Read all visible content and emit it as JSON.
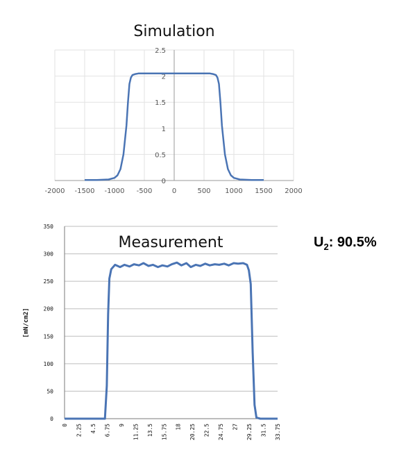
{
  "chart_data": [
    {
      "type": "line",
      "title": "Simulation",
      "xlim": [
        -2000,
        2000
      ],
      "ylim": [
        0,
        2.5
      ],
      "x_ticks": [
        "-2000",
        "-1500",
        "-1000",
        "-500",
        "0",
        "500",
        "1000",
        "1500",
        "2000"
      ],
      "y_ticks": [
        "0",
        "0.5",
        "1",
        "1.5",
        "2",
        "2.5"
      ],
      "grid": true,
      "color": "#4a74b4",
      "series": [
        {
          "x": [
            -1500,
            -1300,
            -1100,
            -1000,
            -950,
            -900,
            -850,
            -800,
            -775,
            -750,
            -725,
            -700,
            -650,
            -600,
            -500,
            -300,
            0,
            300,
            500,
            600,
            650,
            700,
            725,
            750,
            775,
            800,
            850,
            900,
            950,
            1000,
            1100,
            1300,
            1500
          ],
          "y": [
            0.01,
            0.01,
            0.02,
            0.05,
            0.1,
            0.22,
            0.5,
            1.05,
            1.5,
            1.85,
            1.97,
            2.02,
            2.04,
            2.05,
            2.05,
            2.05,
            2.05,
            2.05,
            2.05,
            2.05,
            2.04,
            2.02,
            1.97,
            1.85,
            1.5,
            1.05,
            0.5,
            0.22,
            0.1,
            0.05,
            0.02,
            0.01,
            0.01
          ]
        }
      ]
    },
    {
      "type": "line",
      "title": "Measurement",
      "ylabel": "[mN/cm2]",
      "xlim": [
        0,
        33.75
      ],
      "ylim": [
        0,
        350
      ],
      "x_ticks": [
        "0",
        "2.25",
        "4.5",
        "6.75",
        "9",
        "11.25",
        "13.5",
        "15.75",
        "18",
        "20.25",
        "22.5",
        "24.75",
        "27",
        "29.25",
        "31.5",
        "33.75"
      ],
      "y_ticks": [
        "0",
        "50",
        "100",
        "150",
        "200",
        "250",
        "300",
        "350"
      ],
      "grid": true,
      "color": "#4a74b4",
      "series": [
        {
          "x": [
            0,
            4.5,
            6.4,
            6.7,
            6.9,
            7.1,
            7.4,
            8,
            8.8,
            9.5,
            10.3,
            11,
            11.8,
            12.5,
            13.3,
            14,
            14.8,
            15.5,
            16.3,
            17,
            17.8,
            18.5,
            19.3,
            20,
            20.8,
            21.5,
            22.3,
            23,
            23.8,
            24.5,
            25.3,
            26,
            26.8,
            27.5,
            28.3,
            28.9,
            29.2,
            29.5,
            29.8,
            30.1,
            30.4,
            31,
            33.75
          ],
          "y": [
            0,
            0,
            0,
            60,
            190,
            255,
            272,
            280,
            276,
            280,
            277,
            281,
            279,
            283,
            278,
            280,
            276,
            279,
            277,
            281,
            284,
            279,
            283,
            276,
            280,
            278,
            282,
            279,
            281,
            280,
            282,
            279,
            283,
            282,
            283,
            280,
            270,
            245,
            120,
            25,
            2,
            0,
            0
          ]
        }
      ]
    }
  ],
  "uniformity": {
    "label": "U",
    "subscript": "2",
    "value": ": 90.5%"
  }
}
